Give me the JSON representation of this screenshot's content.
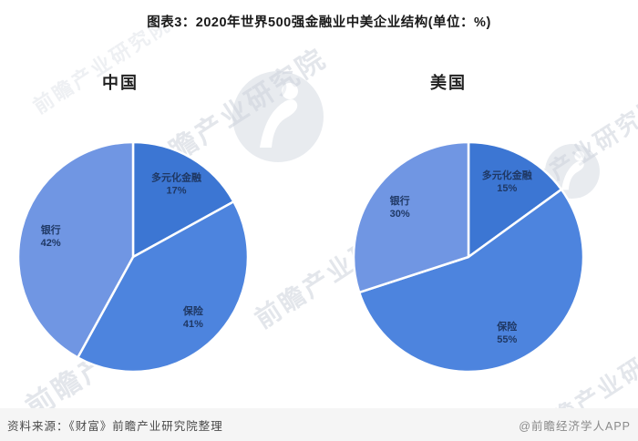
{
  "page": {
    "title": "图表3：2020年世界500强金融业中美企业结构(单位：%)"
  },
  "watermark": {
    "text": "前瞻产业研究院",
    "color": "#c9cfd9"
  },
  "footer": {
    "source": "资料来源：《财富》前瞻产业研究院整理",
    "credit": "@前瞻经济学人APP"
  },
  "chart_data": [
    {
      "type": "pie",
      "title": "中国",
      "labels": [
        "多元化金融",
        "保险",
        "银行"
      ],
      "values": [
        17,
        41,
        42
      ],
      "colors": [
        "#3c76d3",
        "#4d84de",
        "#7096e3"
      ],
      "label_color": "#1f3864",
      "start_angle_deg": 0,
      "direction": "clockwise",
      "slice_border_color": "#ffffff"
    },
    {
      "type": "pie",
      "title": "美国",
      "labels": [
        "多元化金融",
        "保险",
        "银行"
      ],
      "values": [
        15,
        55,
        30
      ],
      "colors": [
        "#3c76d3",
        "#4d84de",
        "#7096e3"
      ],
      "label_color": "#1f3864",
      "start_angle_deg": 0,
      "direction": "clockwise",
      "slice_border_color": "#ffffff"
    }
  ]
}
